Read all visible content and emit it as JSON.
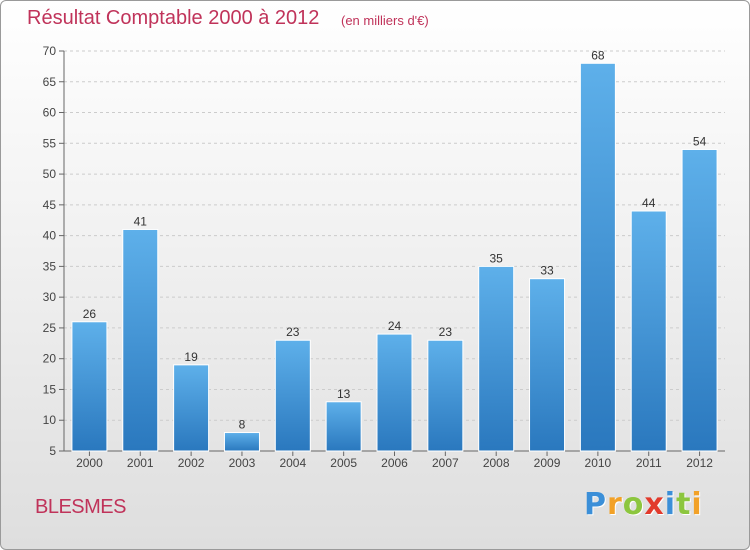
{
  "header": {
    "title": "Résultat Comptable 2000 à 2012",
    "subtitle": "(en milliers d'€)"
  },
  "footer": {
    "commune": "BLESMES",
    "logo_text": "Proxiti"
  },
  "colors": {
    "bar": "#3d97dc",
    "bar_light": "#5eb0ea",
    "bar_dark": "#2a78be",
    "title": "#c0335a",
    "grid": "#cccccc"
  },
  "logo_letters": [
    {
      "ch": "P",
      "color": "#3b8fd8"
    },
    {
      "ch": "r",
      "color": "#f2a127"
    },
    {
      "ch": "o",
      "color": "#8cc63e"
    },
    {
      "ch": "x",
      "color": "#e23a2c"
    },
    {
      "ch": "i",
      "color": "#3b8fd8"
    },
    {
      "ch": "t",
      "color": "#8cc63e"
    },
    {
      "ch": "i",
      "color": "#f2a127"
    }
  ],
  "chart_data": {
    "type": "bar",
    "title": "Résultat Comptable 2000 à 2012",
    "subtitle": "(en milliers d'€)",
    "categories": [
      "2000",
      "2001",
      "2002",
      "2003",
      "2004",
      "2005",
      "2006",
      "2007",
      "2008",
      "2009",
      "2010",
      "2011",
      "2012"
    ],
    "values": [
      26,
      41,
      19,
      8,
      23,
      13,
      24,
      23,
      35,
      33,
      68,
      44,
      54
    ],
    "ylim": [
      5,
      70
    ],
    "yticks": [
      5,
      10,
      15,
      20,
      25,
      30,
      35,
      40,
      45,
      50,
      55,
      60,
      65,
      70
    ],
    "grid": "horizontal",
    "legend": "none"
  }
}
